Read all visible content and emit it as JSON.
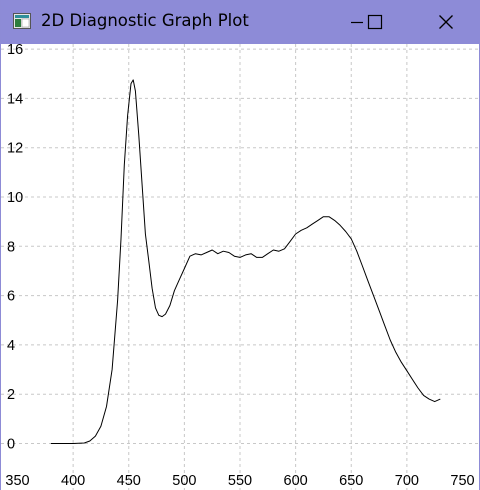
{
  "window": {
    "title": "2D Diagnostic Graph Plot",
    "app_icon": "chart-app-icon",
    "controls": {
      "minimize": "minimize-icon",
      "maximize": "maximize-icon",
      "close": "close-icon"
    },
    "titlebar_color": "#8d8bd7"
  },
  "chart_data": {
    "type": "line",
    "title": "",
    "xlabel": "",
    "ylabel": "",
    "xlim": [
      350,
      750
    ],
    "ylim": [
      0,
      16
    ],
    "x_ticks": [
      "350",
      "400",
      "450",
      "500",
      "550",
      "600",
      "650",
      "700",
      "750"
    ],
    "y_ticks": [
      "0",
      "2",
      "4",
      "6",
      "8",
      "10",
      "12",
      "14",
      "16"
    ],
    "grid": true,
    "line_color": "#000000",
    "series": [
      {
        "x": [
          380,
          400,
          410,
          415,
          420,
          425,
          430,
          435,
          440,
          443,
          446,
          449,
          452,
          454,
          456,
          459,
          462,
          465,
          468,
          471,
          474,
          477,
          480,
          483,
          487,
          491,
          495,
          500,
          505,
          510,
          515,
          520,
          525,
          530,
          535,
          540,
          545,
          550,
          555,
          560,
          565,
          570,
          575,
          580,
          585,
          590,
          595,
          600,
          605,
          610,
          615,
          620,
          625,
          630,
          635,
          640,
          645,
          650,
          655,
          660,
          665,
          670,
          675,
          680,
          685,
          690,
          695,
          700,
          705,
          710,
          715,
          720,
          725,
          730
        ],
        "y": [
          0.0,
          0.0,
          0.02,
          0.1,
          0.3,
          0.7,
          1.5,
          3.0,
          5.8,
          8.3,
          11.3,
          13.3,
          14.6,
          14.75,
          14.3,
          12.5,
          10.5,
          8.5,
          7.4,
          6.3,
          5.5,
          5.2,
          5.15,
          5.25,
          5.6,
          6.2,
          6.6,
          7.1,
          7.6,
          7.7,
          7.65,
          7.75,
          7.85,
          7.7,
          7.8,
          7.75,
          7.6,
          7.55,
          7.65,
          7.7,
          7.55,
          7.55,
          7.7,
          7.85,
          7.8,
          7.9,
          8.2,
          8.5,
          8.65,
          8.75,
          8.9,
          9.05,
          9.2,
          9.2,
          9.05,
          8.85,
          8.6,
          8.3,
          7.8,
          7.2,
          6.6,
          6.0,
          5.4,
          4.8,
          4.2,
          3.7,
          3.3,
          2.95,
          2.6,
          2.25,
          1.95,
          1.8,
          1.7,
          1.8
        ]
      }
    ]
  }
}
